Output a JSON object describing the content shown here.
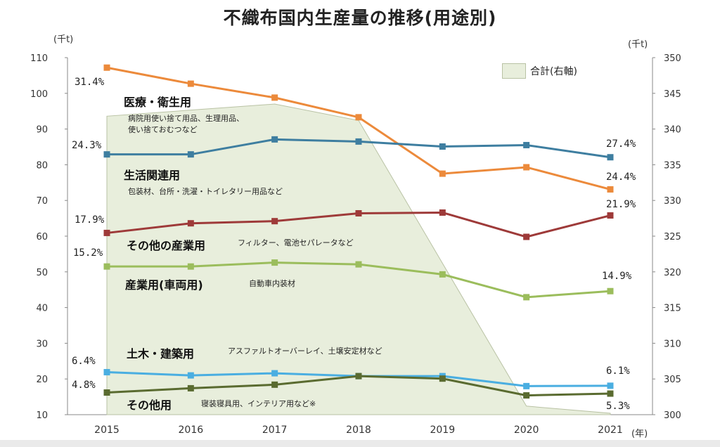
{
  "title": "不織布国内生産量の推移(用途別)",
  "left_unit": "(千t)",
  "right_unit": "(千t)",
  "x_unit": "(年)",
  "legend_total": "合計(右軸)",
  "chart_data": {
    "type": "line",
    "x": [
      "2015",
      "2016",
      "2017",
      "2018",
      "2019",
      "2020",
      "2021"
    ],
    "ylim": [
      10,
      110
    ],
    "yticks": [
      10,
      20,
      30,
      40,
      50,
      60,
      70,
      80,
      90,
      100,
      110
    ],
    "y2lim": [
      300,
      350
    ],
    "y2ticks": [
      300,
      305,
      310,
      315,
      320,
      325,
      330,
      335,
      340,
      345,
      350
    ],
    "grid": false,
    "legend": "top-right",
    "area": {
      "name": "合計(右軸)",
      "axis": "right",
      "values": [
        341.8,
        null,
        343.5,
        341.2,
        null,
        301.2,
        300.2
      ],
      "color": "#e8eedc"
    },
    "series": [
      {
        "name": "医療・衛生用",
        "color": "#ec8a3b",
        "values": [
          107.2,
          102.7,
          98.8,
          93.3,
          77.5,
          79.3,
          73.1
        ]
      },
      {
        "name": "生活関連用",
        "color": "#3e7ea0",
        "values": [
          82.9,
          82.9,
          87.1,
          86.5,
          85.1,
          85.5,
          82.1
        ]
      },
      {
        "name": "その他の産業用",
        "color": "#9e3a39",
        "values": [
          60.9,
          63.6,
          64.2,
          66.4,
          66.6,
          59.8,
          65.8
        ]
      },
      {
        "name": "産業用(車両用)",
        "color": "#9bbd5c",
        "values": [
          51.5,
          51.5,
          52.6,
          52.1,
          49.3,
          42.9,
          44.6
        ]
      },
      {
        "name": "土木・建築用",
        "color": "#4aaee1",
        "values": [
          21.9,
          21.0,
          21.6,
          20.8,
          20.8,
          18.0,
          18.1
        ]
      },
      {
        "name": "その他用",
        "color": "#5a6b30",
        "values": [
          16.2,
          17.4,
          18.4,
          20.8,
          20.1,
          15.4,
          15.9
        ]
      }
    ]
  },
  "annotations": [
    {
      "title": "医療・衛生用",
      "sub": [
        "病院用使い捨て用品、生理用品、",
        "使い捨ておむつなど"
      ],
      "left_pct": "31.4%",
      "right_pct": ""
    },
    {
      "title": "生活関連用",
      "sub": [
        "包装材、台所・洗濯・トイレタリー用品など"
      ],
      "left_pct": "24.3%",
      "right_pct": "27.4%"
    },
    {
      "title": "その他の産業用",
      "sub": [
        "フィルター、電池セパレータなど"
      ],
      "left_pct": "17.9%",
      "right_pct": "21.9%"
    },
    {
      "title": "産業用(車両用)",
      "sub": [
        "自動車内装材"
      ],
      "left_pct": "15.2%",
      "right_pct": "14.9%"
    },
    {
      "title": "土木・建築用",
      "sub": [
        "アスファルトオーバーレイ、土壌安定材など"
      ],
      "left_pct": "6.4%",
      "right_pct": "6.1%"
    },
    {
      "title": "その他用",
      "sub": [
        "寝装寝具用、インテリア用など※"
      ],
      "left_pct": "4.8%",
      "right_pct": "5.3%"
    }
  ],
  "extra_right_pct": "24.4%"
}
